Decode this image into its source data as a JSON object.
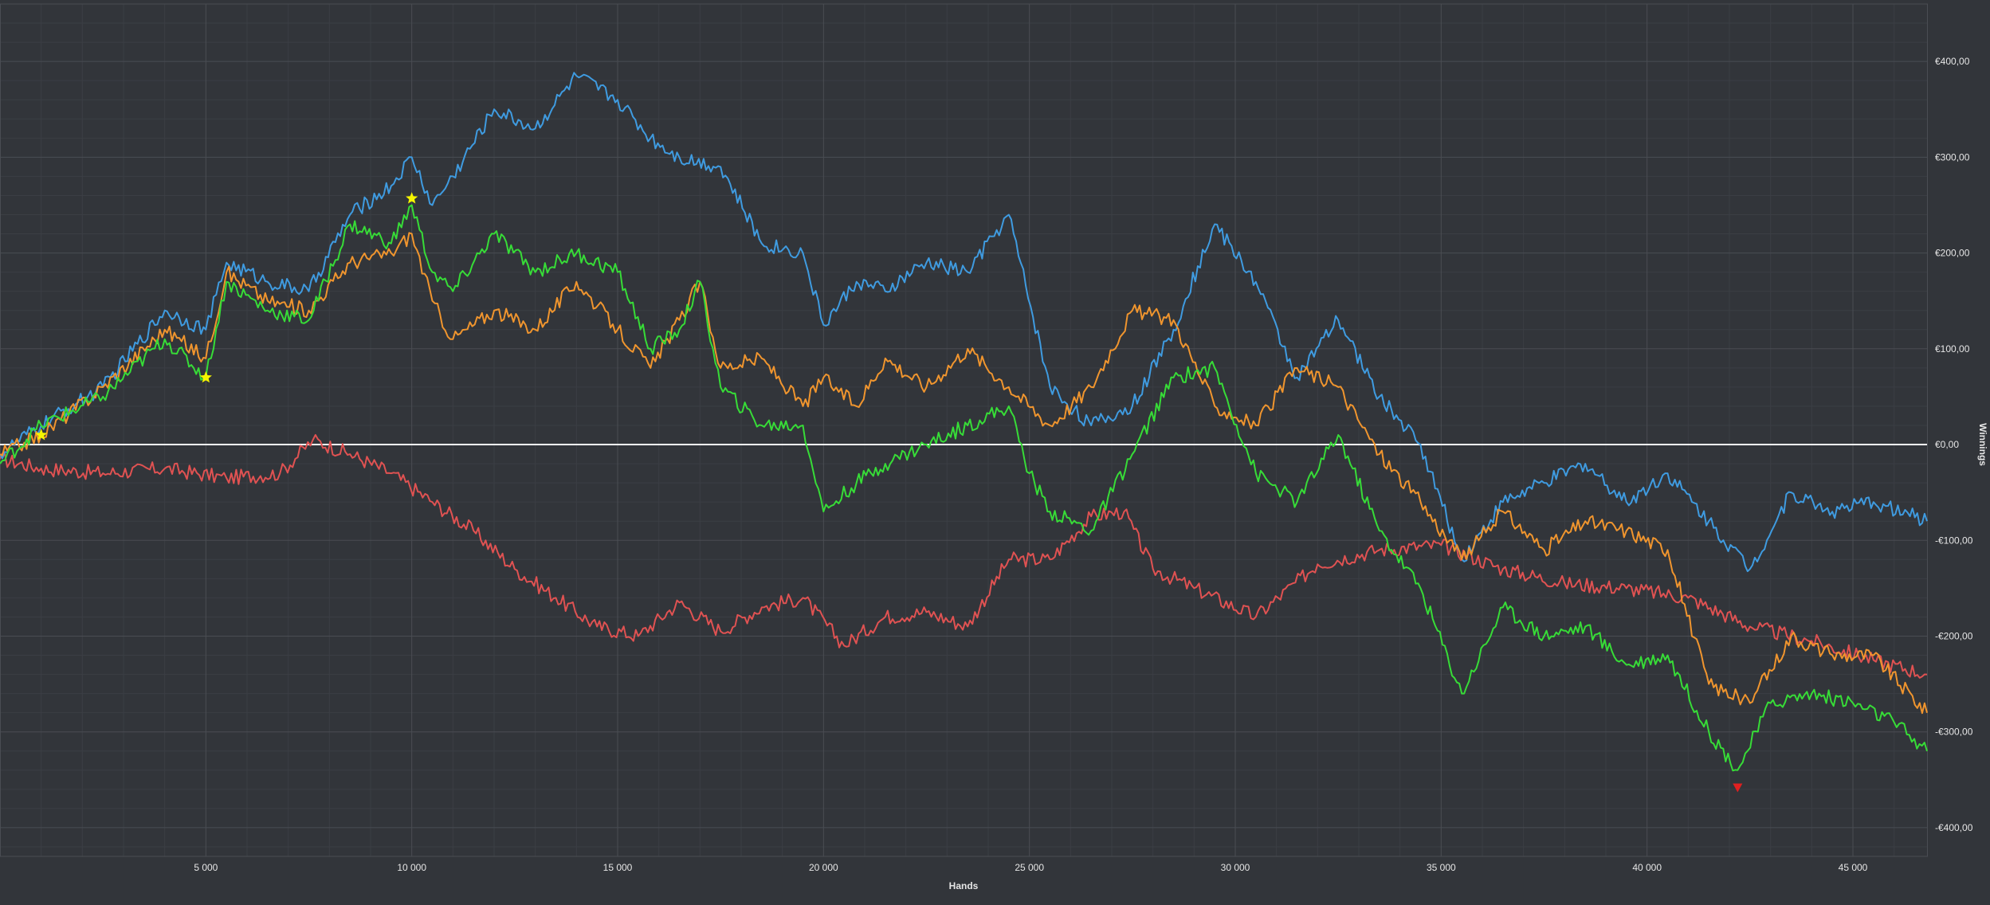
{
  "chart_data": {
    "type": "line",
    "title": "",
    "xlabel": "Hands",
    "ylabel": "Winnings",
    "xlim": [
      0,
      46800
    ],
    "ylim": [
      -430,
      460
    ],
    "x_ticks": [
      5000,
      10000,
      15000,
      20000,
      25000,
      30000,
      35000,
      40000,
      45000
    ],
    "x_tick_labels": [
      "5 000",
      "10 000",
      "15 000",
      "20 000",
      "25 000",
      "30 000",
      "35 000",
      "40 000",
      "45 000"
    ],
    "y_ticks": [
      400,
      300,
      200,
      100,
      0,
      -100,
      -200,
      -300,
      -400
    ],
    "y_tick_labels": [
      "€400,00",
      "€300,00",
      "€200,00",
      "€100,00",
      "€0,00",
      "-€100,00",
      "-€200,00",
      "-€300,00",
      "-€400,00"
    ],
    "grid": true,
    "legend": "none",
    "zero_line_color": "#ffffff",
    "series": [
      {
        "color": "#e05252",
        "x": [
          0,
          1000,
          2500,
          4000,
          5500,
          6800,
          7600,
          8500,
          9500,
          10500,
          11500,
          12500,
          13500,
          14500,
          15500,
          16500,
          17500,
          18500,
          19500,
          20500,
          21500,
          22500,
          23500,
          24500,
          25500,
          26500,
          27300,
          28000,
          29000,
          30500,
          32000,
          33500,
          35000,
          36500,
          38000,
          39500,
          41000,
          42500,
          44000,
          45500,
          46800
        ],
        "y": [
          -15,
          -25,
          -30,
          -25,
          -35,
          -30,
          5,
          -10,
          -30,
          -60,
          -90,
          -130,
          -160,
          -190,
          -200,
          -165,
          -195,
          -170,
          -160,
          -210,
          -180,
          -175,
          -190,
          -120,
          -120,
          -75,
          -70,
          -130,
          -150,
          -180,
          -125,
          -110,
          -105,
          -130,
          -145,
          -150,
          -160,
          -190,
          -205,
          -225,
          -240
        ]
      },
      {
        "color": "#3f9be0",
        "x": [
          0,
          1000,
          2500,
          4000,
          5000,
          5500,
          6500,
          7500,
          8500,
          9500,
          10000,
          10500,
          11000,
          12000,
          13000,
          14000,
          15000,
          15800,
          16500,
          17500,
          18500,
          19500,
          20000,
          20800,
          21500,
          22500,
          23500,
          24500,
          25500,
          26500,
          27500,
          28500,
          29500,
          30500,
          31500,
          32500,
          33500,
          34500,
          35500,
          36500,
          37500,
          38500,
          39500,
          40500,
          41500,
          42500,
          43500,
          44500,
          45500,
          46800
        ],
        "y": [
          -10,
          20,
          60,
          140,
          120,
          190,
          170,
          160,
          240,
          270,
          300,
          250,
          280,
          350,
          330,
          385,
          360,
          320,
          300,
          290,
          210,
          200,
          125,
          170,
          160,
          190,
          180,
          240,
          60,
          20,
          40,
          120,
          230,
          170,
          70,
          130,
          50,
          0,
          -120,
          -60,
          -40,
          -20,
          -60,
          -30,
          -80,
          -130,
          -50,
          -70,
          -60,
          -80
        ]
      },
      {
        "color": "#f0952e",
        "x": [
          0,
          1000,
          2500,
          4000,
          5000,
          5500,
          6500,
          7500,
          8500,
          9500,
          10000,
          10500,
          11000,
          12000,
          13000,
          14000,
          15000,
          15800,
          16500,
          17000,
          17500,
          18500,
          19500,
          20000,
          20800,
          21500,
          22500,
          23500,
          24500,
          25500,
          26500,
          27500,
          28500,
          29500,
          30500,
          31500,
          32500,
          33500,
          34500,
          35500,
          36500,
          37500,
          38500,
          39500,
          40500,
          41500,
          42500,
          43500,
          44500,
          45500,
          46800
        ],
        "y": [
          -10,
          10,
          60,
          120,
          90,
          180,
          150,
          140,
          190,
          200,
          220,
          150,
          110,
          140,
          120,
          170,
          120,
          80,
          130,
          170,
          80,
          90,
          40,
          70,
          40,
          90,
          60,
          100,
          60,
          20,
          60,
          140,
          130,
          40,
          20,
          80,
          60,
          -10,
          -60,
          -120,
          -70,
          -110,
          -80,
          -90,
          -110,
          -250,
          -270,
          -200,
          -220,
          -220,
          -280
        ]
      },
      {
        "color": "#37dc37",
        "x": [
          0,
          1000,
          2500,
          4000,
          5000,
          5500,
          6500,
          7500,
          8500,
          9500,
          10000,
          10500,
          11000,
          12000,
          13000,
          14000,
          15000,
          15800,
          16500,
          17000,
          17500,
          18500,
          19500,
          20000,
          20800,
          21500,
          22500,
          23500,
          24500,
          25000,
          25500,
          26500,
          27500,
          28500,
          29500,
          30500,
          31500,
          32500,
          33500,
          34500,
          35500,
          36500,
          37500,
          38500,
          39500,
          40500,
          41500,
          42200,
          43000,
          44000,
          45000,
          46000,
          46800
        ],
        "y": [
          -20,
          20,
          50,
          110,
          70,
          170,
          140,
          130,
          230,
          210,
          250,
          180,
          160,
          220,
          180,
          200,
          180,
          100,
          120,
          170,
          60,
          20,
          20,
          -70,
          -40,
          -20,
          0,
          20,
          40,
          -30,
          -70,
          -90,
          -10,
          70,
          80,
          -30,
          -60,
          10,
          -90,
          -150,
          -260,
          -170,
          -200,
          -190,
          -230,
          -220,
          -300,
          -340,
          -270,
          -260,
          -270,
          -290,
          -320
        ]
      }
    ],
    "markers": [
      {
        "shape": "star",
        "color": "#f5f500",
        "x": 1000,
        "y": 10
      },
      {
        "shape": "star",
        "color": "#f5f500",
        "x": 5000,
        "y": 70
      },
      {
        "shape": "star",
        "color": "#f5f500",
        "x": 10000,
        "y": 257
      },
      {
        "shape": "triangle-down",
        "color": "#e02020",
        "x": 42200,
        "y": -358
      }
    ]
  }
}
